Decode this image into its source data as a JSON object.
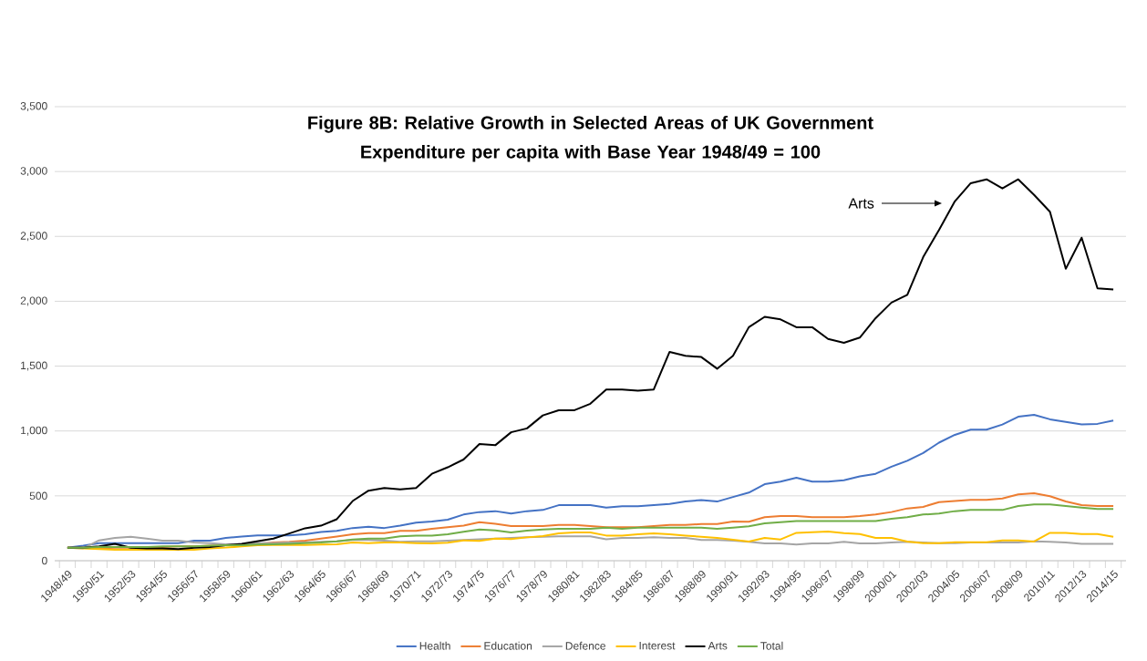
{
  "chart_data": {
    "type": "line",
    "title": "Figure 8B: Relative Growth in Selected Areas of UK Government Expenditure per capita with Base Year 1948/49 = 100",
    "categories": [
      "1948/49",
      null,
      "1950/51",
      null,
      "1952/53",
      null,
      "1954/55",
      null,
      "1956/57",
      null,
      "1958/59",
      null,
      "1960/61",
      null,
      "1962/63",
      null,
      "1964/65",
      null,
      "1966/67",
      null,
      "1968/69",
      null,
      "1970/71",
      null,
      "1972/73",
      null,
      "1974/75",
      null,
      "1976/77",
      null,
      "1978/79",
      null,
      "1980/81",
      null,
      "1982/83",
      null,
      "1984/85",
      null,
      "1986/87",
      null,
      "1988/89",
      null,
      "1990/91",
      null,
      "1992/93",
      null,
      "1994/95",
      null,
      "1996/97",
      null,
      "1998/99",
      null,
      "2000/01",
      null,
      "2002/03",
      null,
      "2004/05",
      null,
      "2006/07",
      null,
      "2008/09",
      null,
      "2010/11",
      null,
      "2012/13",
      null,
      "2014/15"
    ],
    "series": [
      {
        "name": "Health",
        "color": "#4472c4",
        "values": [
          100,
          116,
          135,
          135,
          135,
          135,
          135,
          135,
          155,
          155,
          176,
          186,
          195,
          195,
          195,
          204,
          221,
          230,
          252,
          262,
          252,
          270,
          293,
          302,
          316,
          356,
          375,
          382,
          363,
          382,
          391,
          428,
          428,
          428,
          410,
          419,
          419,
          428,
          437,
          456,
          468,
          456,
          491,
          525,
          590,
          610,
          640,
          610,
          610,
          620,
          650,
          670,
          725,
          770,
          830,
          910,
          970,
          1010,
          1010,
          1050,
          1110,
          1125,
          1090,
          1070,
          1050,
          1055,
          1080
        ]
      },
      {
        "name": "Education",
        "color": "#ed7d31",
        "values": [
          100,
          100,
          95,
          100,
          100,
          105,
          105,
          110,
          110,
          115,
          120,
          125,
          130,
          140,
          145,
          155,
          170,
          186,
          204,
          212,
          212,
          230,
          230,
          246,
          258,
          270,
          297,
          285,
          267,
          267,
          267,
          276,
          276,
          267,
          258,
          258,
          258,
          267,
          276,
          276,
          283,
          283,
          302,
          300,
          335,
          344,
          344,
          335,
          335,
          335,
          344,
          356,
          375,
          403,
          415,
          452,
          461,
          469,
          469,
          480,
          511,
          520,
          497,
          457,
          429,
          422,
          422
        ]
      },
      {
        "name": "Defence",
        "color": "#a5a5a5",
        "values": [
          100,
          95,
          157,
          175,
          184,
          170,
          155,
          155,
          140,
          135,
          127,
          127,
          135,
          135,
          140,
          140,
          145,
          150,
          160,
          160,
          155,
          145,
          150,
          150,
          155,
          160,
          165,
          170,
          176,
          180,
          184,
          188,
          188,
          188,
          165,
          176,
          176,
          181,
          176,
          176,
          160,
          160,
          155,
          145,
          134,
          134,
          124,
          134,
          134,
          145,
          134,
          134,
          140,
          145,
          140,
          135,
          135,
          140,
          140,
          140,
          140,
          150,
          145,
          140,
          130,
          130,
          130
        ]
      },
      {
        "name": "Interest",
        "color": "#ffc000",
        "values": [
          100,
          95,
          89,
          84,
          84,
          84,
          84,
          84,
          84,
          95,
          101,
          110,
          120,
          121,
          121,
          121,
          124,
          127,
          140,
          135,
          140,
          140,
          136,
          133,
          139,
          157,
          152,
          171,
          166,
          180,
          190,
          211,
          218,
          218,
          194,
          194,
          204,
          211,
          204,
          194,
          185,
          176,
          162,
          148,
          176,
          164,
          215,
          220,
          225,
          213,
          206,
          176,
          176,
          148,
          136,
          136,
          143,
          143,
          143,
          157,
          157,
          148,
          215,
          215,
          206,
          206,
          185
        ]
      },
      {
        "name": "Arts",
        "color": "#000000",
        "values": [
          100,
          100,
          110,
          130,
          100,
          95,
          95,
          90,
          100,
          105,
          120,
          130,
          150,
          170,
          210,
          250,
          270,
          320,
          460,
          540,
          560,
          550,
          560,
          670,
          720,
          780,
          900,
          890,
          990,
          1020,
          1120,
          1160,
          1160,
          1210,
          1320,
          1320,
          1310,
          1320,
          1610,
          1580,
          1570,
          1480,
          1580,
          1800,
          1880,
          1860,
          1800,
          1800,
          1710,
          1680,
          1720,
          1870,
          1990,
          2050,
          2340,
          2550,
          2770,
          2910,
          2940,
          2870,
          2940,
          2820,
          2690,
          2250,
          2490,
          2100,
          2090
        ]
      },
      {
        "name": "Total",
        "color": "#70ad47",
        "values": [
          100,
          100,
          105,
          105,
          105,
          105,
          110,
          110,
          110,
          115,
          120,
          120,
          125,
          127,
          130,
          135,
          140,
          150,
          163,
          170,
          170,
          188,
          194,
          194,
          204,
          223,
          241,
          234,
          218,
          232,
          241,
          246,
          246,
          246,
          255,
          246,
          255,
          255,
          255,
          255,
          255,
          246,
          255,
          265,
          288,
          297,
          305,
          305,
          305,
          305,
          305,
          305,
          323,
          335,
          356,
          363,
          382,
          391,
          391,
          391,
          422,
          434,
          434,
          422,
          410,
          399,
          399
        ]
      }
    ],
    "ylim": [
      0,
      3500
    ],
    "yticks": [
      0,
      500,
      {
        "value": 1000,
        "label": "1,000"
      },
      {
        "value": 1500,
        "label": "1,500"
      },
      {
        "value": 2000,
        "label": "2,000"
      },
      {
        "value": 2500,
        "label": "2,500"
      },
      {
        "value": 3000,
        "label": "3,000"
      },
      {
        "value": 3500,
        "label": "3,500"
      }
    ],
    "annotations": [
      "Arts"
    ],
    "grid": "y",
    "legend": "bottom",
    "line_style": "solid"
  }
}
